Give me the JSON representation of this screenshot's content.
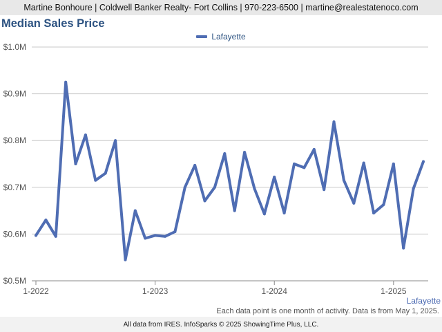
{
  "header": {
    "text": "Martine Bonhoure | Coldwell Banker Realty- Fort Collins | 970-223-6500 | martine@realestatenoco.com"
  },
  "chart_data": {
    "type": "line",
    "title": "Median Sales Price",
    "series": [
      {
        "name": "Lafayette",
        "color": "#4f6db3",
        "x": [
          "2022-01",
          "2022-02",
          "2022-03",
          "2022-04",
          "2022-05",
          "2022-06",
          "2022-07",
          "2022-08",
          "2022-09",
          "2022-10",
          "2022-11",
          "2022-12",
          "2023-01",
          "2023-02",
          "2023-03",
          "2023-04",
          "2023-05",
          "2023-06",
          "2023-07",
          "2023-08",
          "2023-09",
          "2023-10",
          "2023-11",
          "2023-12",
          "2024-01",
          "2024-02",
          "2024-03",
          "2024-04",
          "2024-05",
          "2024-06",
          "2024-07",
          "2024-08",
          "2024-09",
          "2024-10",
          "2024-11",
          "2024-12",
          "2025-01",
          "2025-02",
          "2025-03",
          "2025-04"
        ],
        "values": [
          0.597,
          0.63,
          0.595,
          0.925,
          0.75,
          0.812,
          0.715,
          0.73,
          0.8,
          0.545,
          0.65,
          0.591,
          0.597,
          0.595,
          0.605,
          0.7,
          0.747,
          0.671,
          0.7,
          0.772,
          0.65,
          0.775,
          0.697,
          0.643,
          0.722,
          0.645,
          0.75,
          0.742,
          0.781,
          0.695,
          0.84,
          0.715,
          0.666,
          0.752,
          0.645,
          0.663,
          0.75,
          0.57,
          0.697,
          0.755
        ]
      }
    ],
    "yticks": [
      "$1.0M",
      "$0.9M",
      "$0.8M",
      "$0.7M",
      "$0.6M",
      "$0.5M"
    ],
    "ytick_values": [
      1.0,
      0.9,
      0.8,
      0.7,
      0.6,
      0.5
    ],
    "ylim": [
      0.5,
      1.0
    ],
    "xticks": [
      "1-2022",
      "1-2023",
      "1-2024",
      "1-2025"
    ],
    "xtick_months": [
      "2022-01",
      "2023-01",
      "2024-01",
      "2025-01"
    ],
    "grid": true,
    "legend_position": "top-center"
  },
  "series_label": "Lafayette",
  "footnote": "Each data point is one month of activity. Data is from May 1, 2025.",
  "footer": {
    "text": "All data from IRES. InfoSparks © 2025 ShowingTime Plus, LLC."
  }
}
